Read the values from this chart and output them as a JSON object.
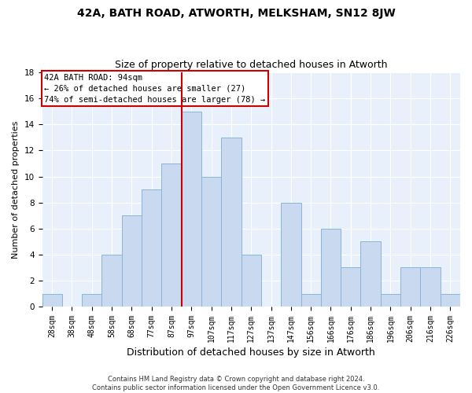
{
  "title1": "42A, BATH ROAD, ATWORTH, MELKSHAM, SN12 8JW",
  "title2": "Size of property relative to detached houses in Atworth",
  "xlabel": "Distribution of detached houses by size in Atworth",
  "ylabel": "Number of detached properties",
  "categories": [
    "28sqm",
    "38sqm",
    "48sqm",
    "58sqm",
    "68sqm",
    "77sqm",
    "87sqm",
    "97sqm",
    "107sqm",
    "117sqm",
    "127sqm",
    "137sqm",
    "147sqm",
    "156sqm",
    "166sqm",
    "176sqm",
    "186sqm",
    "196sqm",
    "206sqm",
    "216sqm",
    "226sqm"
  ],
  "values": [
    1,
    0,
    1,
    4,
    7,
    9,
    11,
    15,
    10,
    13,
    4,
    0,
    8,
    1,
    6,
    3,
    5,
    1,
    3,
    3,
    1
  ],
  "bar_color": "#c9d9f0",
  "bar_edge_color": "#8ab4d8",
  "vline_color": "#cc0000",
  "vline_pos": 6.5,
  "annotation_line1": "42A BATH ROAD: 94sqm",
  "annotation_line2": "← 26% of detached houses are smaller (27)",
  "annotation_line3": "74% of semi-detached houses are larger (78) →",
  "annotation_box_color": "#cc0000",
  "footer1": "Contains HM Land Registry data © Crown copyright and database right 2024.",
  "footer2": "Contains public sector information licensed under the Open Government Licence v3.0.",
  "ylim": [
    0,
    18
  ],
  "yticks": [
    0,
    2,
    4,
    6,
    8,
    10,
    12,
    14,
    16,
    18
  ],
  "bg_color": "#e8f1fb",
  "grid_color": "#ffffff",
  "title1_fontsize": 10,
  "title2_fontsize": 9,
  "tick_fontsize": 7,
  "ylabel_fontsize": 8,
  "xlabel_fontsize": 9,
  "ann_fontsize": 7.5,
  "footer_fontsize": 6
}
